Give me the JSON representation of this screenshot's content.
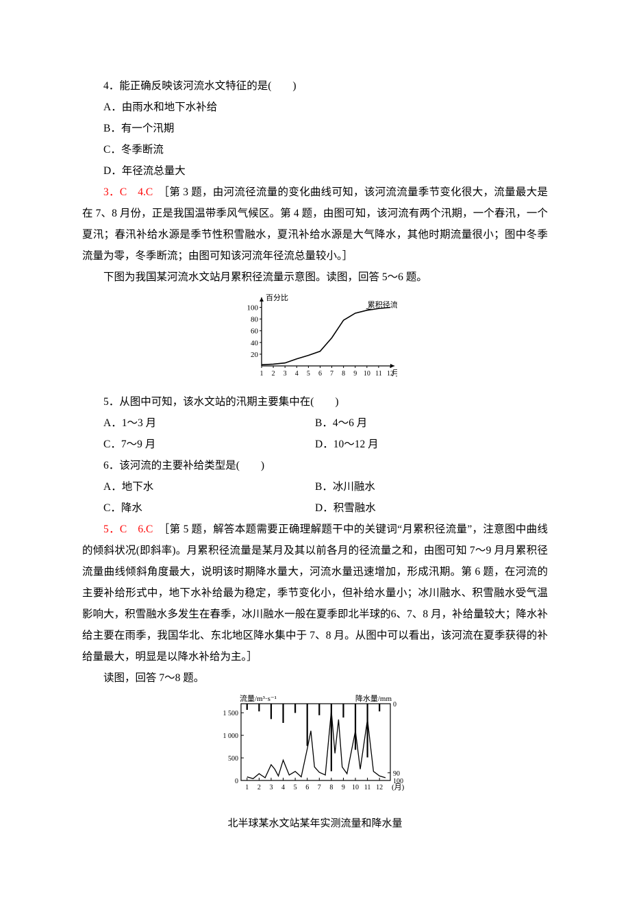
{
  "q4": {
    "stem": "4．能正确反映该河流水文特征的是(　　)",
    "A": "A．由雨水和地下水补给",
    "B": "B．有一个汛期",
    "C": "C．冬季断流",
    "D": "D．年径流总量大"
  },
  "ans34": {
    "label": "3．C　4.C　",
    "text": "［第 3 题，由河流径流量的变化曲线可知，该河流流量季节变化很大，流量最大是在 7、8 月份，正是我国温带季风气候区。第 4 题，由图可知，该河流有两个汛期，一个春汛，一个夏汛；春汛补给水源是季节性积雪融水，夏汛补给水源是大气降水，其他时期流量很小；图中冬季流量为零，冬季断流；由图可知该河流年径流总量较小。］"
  },
  "intro56": "下图为我国某河流水文站月累积径流量示意图。读图，回答 5～6 题。",
  "fig1": {
    "y_label": "百分比",
    "legend": "累积径流量",
    "x_label_suffix": "月",
    "x_ticks": [
      "1",
      "2",
      "3",
      "4",
      "5",
      "6",
      "7",
      "8",
      "9",
      "10",
      "11",
      "12"
    ],
    "y_ticks": [
      20,
      40,
      60,
      80,
      100
    ],
    "curve": [
      {
        "m": 1,
        "v": 2
      },
      {
        "m": 2,
        "v": 3
      },
      {
        "m": 3,
        "v": 5
      },
      {
        "m": 4,
        "v": 12
      },
      {
        "m": 5,
        "v": 18
      },
      {
        "m": 6,
        "v": 25
      },
      {
        "m": 7,
        "v": 48
      },
      {
        "m": 8,
        "v": 78
      },
      {
        "m": 9,
        "v": 90
      },
      {
        "m": 10,
        "v": 95
      },
      {
        "m": 11,
        "v": 98
      },
      {
        "m": 12,
        "v": 100
      }
    ],
    "axis_color": "#000000",
    "curve_color": "#000000",
    "bg": "#ffffff",
    "font_size": 11
  },
  "q5": {
    "stem": "5．从图中可知，该水文站的汛期主要集中在(　　)",
    "A": "A．1～3 月",
    "B": "B．4～6 月",
    "C": "C．7～9 月",
    "D": "D．10～12 月"
  },
  "q6": {
    "stem": "6．该河流的主要补给类型是(　　)",
    "A": "A．地下水",
    "B": "B．冰川融水",
    "C": "C．降水",
    "D": "D．积雪融水"
  },
  "ans56": {
    "label": "5．C　6.C　",
    "text": "［第 5 题，解答本题需要正确理解题干中的关键词“月累积径流量”，注意图中曲线的倾斜状况(即斜率)。月累积径流量是某月及其以前各月的径流量之和，由图可知 7～9 月月累积径流量曲线倾斜角度最大，说明该时期降水量大，河流水量迅速增加，形成汛期。第 6 题，在河流的主要补给形式中，地下水补给最为稳定，季节变化小，但补给水量小；冰川融水、积雪融水受气温影响大，积雪融水多发生在春季，冰川融水一般在夏季即北半球的6、7、8 月，补给量较大；降水补给主要在雨季，我国华北、东北地区降水集中于 7、8 月。从图中可以看出，该河流在夏季获得的补给量最大，明显是以降水补给为主。］"
  },
  "intro78": "读图，回答 7～8 题。",
  "fig2": {
    "left_axis_label": "流量/m³·s⁻¹",
    "right_axis_label": "降水量/mm",
    "x_label_suffix": "(月)",
    "x_ticks": [
      "1",
      "2",
      "3",
      "4",
      "5",
      "6",
      "7",
      "8",
      "9",
      "10",
      "11",
      "12"
    ],
    "left_y_ticks": [
      0,
      500,
      1000,
      1500
    ],
    "right_y_ticks": [
      0,
      90,
      100
    ],
    "flow": [
      {
        "m": 1,
        "v": 80
      },
      {
        "m": 1.5,
        "v": 40
      },
      {
        "m": 2,
        "v": 150
      },
      {
        "m": 2.5,
        "v": 60
      },
      {
        "m": 3,
        "v": 350
      },
      {
        "m": 3.3,
        "v": 250
      },
      {
        "m": 3.6,
        "v": 100
      },
      {
        "m": 4,
        "v": 450
      },
      {
        "m": 4.5,
        "v": 120
      },
      {
        "m": 5,
        "v": 200
      },
      {
        "m": 5.5,
        "v": 80
      },
      {
        "m": 6,
        "v": 700
      },
      {
        "m": 6.3,
        "v": 1100
      },
      {
        "m": 6.6,
        "v": 300
      },
      {
        "m": 7,
        "v": 180
      },
      {
        "m": 7.5,
        "v": 120
      },
      {
        "m": 8,
        "v": 1550
      },
      {
        "m": 8.3,
        "v": 600
      },
      {
        "m": 8.6,
        "v": 1350
      },
      {
        "m": 8.9,
        "v": 300
      },
      {
        "m": 9.3,
        "v": 150
      },
      {
        "m": 10,
        "v": 1100
      },
      {
        "m": 10.4,
        "v": 250
      },
      {
        "m": 11,
        "v": 1350
      },
      {
        "m": 11.5,
        "v": 200
      },
      {
        "m": 12,
        "v": 100
      },
      {
        "m": 12.5,
        "v": 60
      }
    ],
    "precip_bars": [
      {
        "m": 1,
        "v": 8
      },
      {
        "m": 2,
        "v": 10
      },
      {
        "m": 3,
        "v": 20
      },
      {
        "m": 4,
        "v": 25
      },
      {
        "m": 5,
        "v": 12
      },
      {
        "m": 6,
        "v": 55
      },
      {
        "m": 7,
        "v": 15
      },
      {
        "m": 8,
        "v": 88
      },
      {
        "m": 9,
        "v": 18
      },
      {
        "m": 10,
        "v": 60
      },
      {
        "m": 11,
        "v": 70
      },
      {
        "m": 12,
        "v": 10
      }
    ],
    "axis_color": "#000000",
    "curve_color": "#000000",
    "bar_color": "#000000",
    "bg": "#ffffff",
    "font_size": 11,
    "caption": "北半球某水文站某年实测流量和降水量"
  }
}
